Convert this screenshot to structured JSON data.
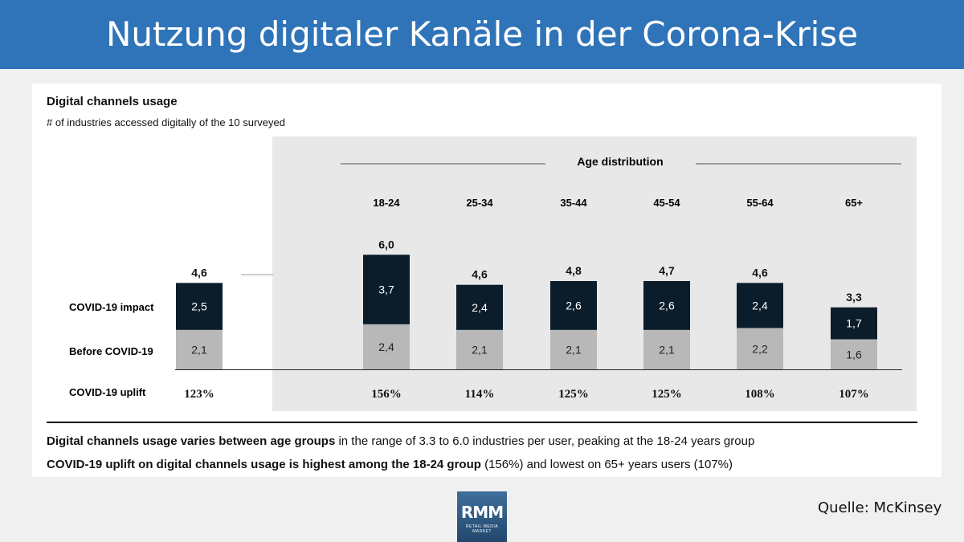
{
  "page": {
    "header": "Nutzung digitaler Kanäle in der Corona-Krise",
    "source": "Quelle: McKinsey",
    "logo": {
      "main": "RMM",
      "sub": "RETAIL MEDIA MARKET"
    },
    "summary": [
      {
        "bold": "Digital channels usage varies between age groups",
        "rest": " in the range of 3.3 to 6.0 industries per user, peaking at the 18-24 years group"
      },
      {
        "bold": "COVID-19 uplift on digital channels usage is highest among the 18-24 group",
        "rest": " (156%) and lowest on 65+ years users (107%)"
      }
    ]
  },
  "chart_data": {
    "type": "bar",
    "stacked": true,
    "title": "Digital channels usage",
    "subtitle": "# of industries accessed digitally of the 10 surveyed",
    "group_label": "Age distribution",
    "categories": [
      "",
      "18-24",
      "25-34",
      "35-44",
      "45-54",
      "55-64",
      "65+"
    ],
    "series": [
      {
        "name": "Before COVID-19",
        "values": [
          2.1,
          2.4,
          2.1,
          2.1,
          2.1,
          2.2,
          1.6
        ],
        "labels": [
          "2,1",
          "2,4",
          "2,1",
          "2,1",
          "2,1",
          "2,2",
          "1,6"
        ]
      },
      {
        "name": "COVID-19 impact",
        "values": [
          2.5,
          3.7,
          2.4,
          2.6,
          2.6,
          2.4,
          1.7
        ],
        "labels": [
          "2,5",
          "3,7",
          "2,4",
          "2,6",
          "2,6",
          "2,4",
          "1,7"
        ]
      }
    ],
    "totals": [
      "4,6",
      "6,0",
      "4,6",
      "4,8",
      "4,7",
      "4,6",
      "3,3"
    ],
    "uplift_label": "COVID-19 uplift",
    "uplift": [
      "123%",
      "156%",
      "114%",
      "125%",
      "125%",
      "108%",
      "107%"
    ],
    "colors": {
      "before": "#b8b8b8",
      "impact": "#0b1d2b",
      "age_panel": "#e8e8e8",
      "header": "#2f74b8",
      "page_bg": "#f0f0f0"
    }
  }
}
